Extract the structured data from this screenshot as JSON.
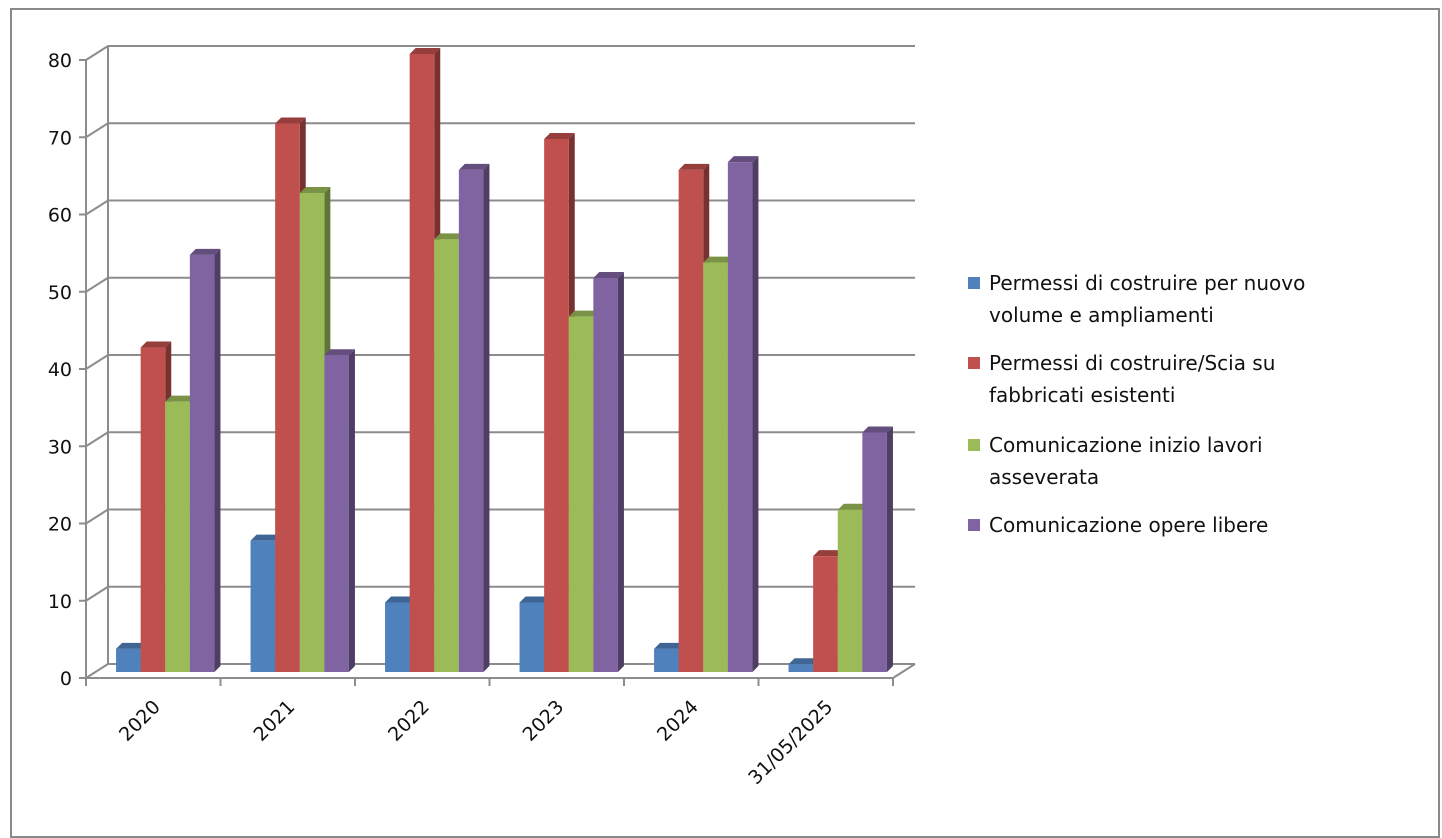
{
  "chart_data": {
    "type": "bar",
    "title": "",
    "xlabel": "",
    "ylabel": "",
    "ylim": [
      0,
      80
    ],
    "yticks": [
      0,
      10,
      20,
      30,
      40,
      50,
      60,
      70,
      80
    ],
    "grid": true,
    "legend_position": "right",
    "categories": [
      "2020",
      "2021",
      "2022",
      "2023",
      "2024",
      "31/05/2025"
    ],
    "series": [
      {
        "name": "Permessi di costruire per nuovo volume e ampliamenti",
        "color": "#4f81bd",
        "values": [
          3,
          17,
          9,
          9,
          3,
          1
        ]
      },
      {
        "name": "Permessi di costruire/Scia su fabbricati esistenti",
        "color": "#c0504d",
        "values": [
          42,
          71,
          80,
          69,
          65,
          15
        ]
      },
      {
        "name": "Comunicazione inizio lavori asseverata",
        "color": "#9bbb59",
        "values": [
          35,
          62,
          56,
          46,
          53,
          21
        ]
      },
      {
        "name": "Comunicazione opere libere",
        "color": "#8064a2",
        "values": [
          54,
          41,
          65,
          51,
          66,
          31
        ]
      }
    ]
  }
}
